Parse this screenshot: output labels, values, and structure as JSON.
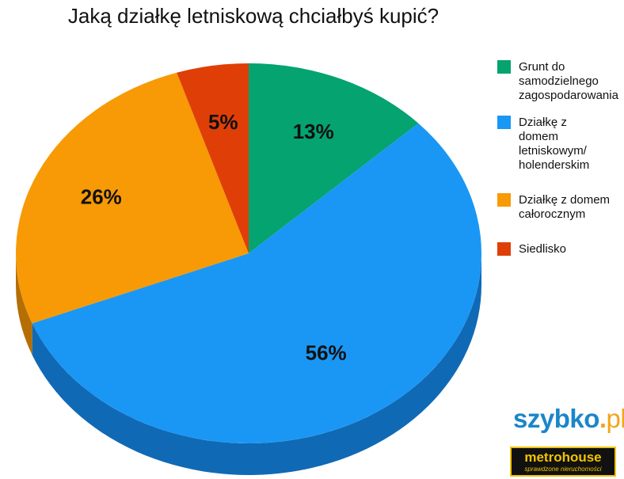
{
  "chart_data": {
    "type": "pie",
    "title": "Jaką działkę letniskową chciałbyś kupić?",
    "categories": [
      "Grunt do samodzielnego zagospodarowania",
      "Działkę z domem letniskowym/ holenderskim",
      "Działkę z domem całorocznym",
      "Siedlisko"
    ],
    "values": [
      13,
      56,
      26,
      5
    ],
    "value_labels": [
      "13%",
      "56%",
      "26%",
      "5%"
    ],
    "colors": [
      "#04a36f",
      "#1a97f5",
      "#f79a05",
      "#e03e07"
    ],
    "side_colors": [
      "#037a53",
      "#1069b5",
      "#b56e03",
      "#a42c05"
    ],
    "legend_position": "right",
    "style": "3d"
  },
  "legend": {
    "items": [
      {
        "lines": [
          "Grunt do",
          "samodzielnego",
          "zagospodarowania"
        ],
        "color": "#04a36f"
      },
      {
        "lines": [
          "Działkę z",
          "domem",
          "letniskowym/",
          "holenderskim"
        ],
        "color": "#1a97f5"
      },
      {
        "lines": [
          "Działkę z domem",
          "całorocznym"
        ],
        "color": "#f79a05"
      },
      {
        "lines": [
          "Siedlisko"
        ],
        "color": "#e03e07"
      }
    ]
  },
  "logos": {
    "szybko": {
      "main": "szybko",
      "dot": ".",
      "tld": "pl"
    },
    "metrohouse": {
      "brand": "metrohouse",
      "tagline": "sprawdzone nieruchomości"
    }
  }
}
